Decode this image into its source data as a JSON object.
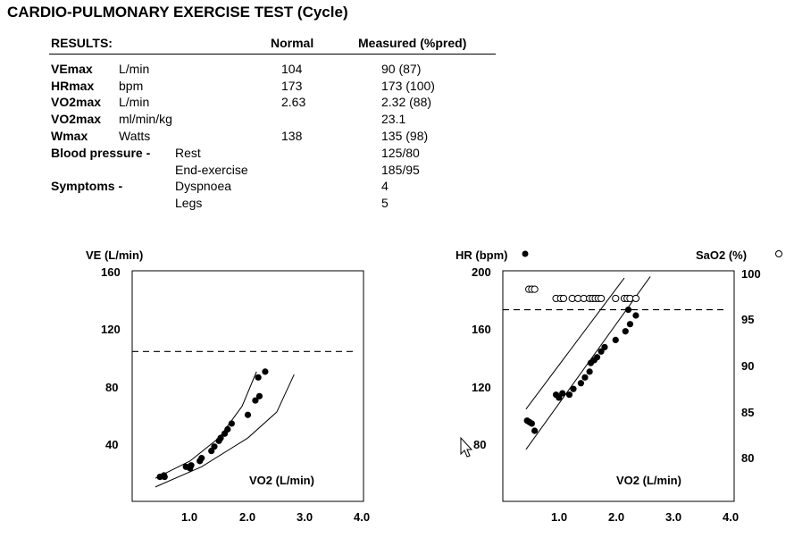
{
  "title": "CARDIO-PULMONARY EXERCISE TEST (Cycle)",
  "table": {
    "headers": [
      "RESULTS:",
      "Normal",
      "Measured (%pred)"
    ],
    "rows": [
      {
        "name": "VEmax",
        "unit": "L/min",
        "normal": "104",
        "measured": "90 (87)"
      },
      {
        "name": "HRmax",
        "unit": "bpm",
        "normal": "173",
        "measured": "173 (100)"
      },
      {
        "name": "VO2max",
        "unit": "L/min",
        "normal": "2.63",
        "measured": "2.32 (88)"
      },
      {
        "name": "VO2max",
        "unit": "ml/min/kg",
        "normal": "",
        "measured": "23.1"
      },
      {
        "name": "Wmax",
        "unit": "Watts",
        "normal": "138",
        "measured": "135 (98)"
      },
      {
        "name": "Blood pressure -",
        "unit": "Rest",
        "normal": "",
        "measured": "125/80"
      },
      {
        "name": "",
        "unit": "End-exercise",
        "normal": "",
        "measured": "185/95"
      },
      {
        "name": "Symptoms -",
        "unit": "Dyspnoea",
        "normal": "",
        "measured": "4"
      },
      {
        "name": "",
        "unit": "Legs",
        "normal": "",
        "measured": "5"
      }
    ]
  },
  "chart_data": [
    {
      "type": "scatter",
      "ylabel": "VE (L/min)",
      "xlabel": "VO2 (L/min)",
      "xlim": [
        0,
        4
      ],
      "ylim": [
        0,
        160
      ],
      "xticks": [
        "1.0",
        "2.0",
        "3.0",
        "4.0"
      ],
      "yticks": [
        "40",
        "80",
        "120",
        "160"
      ],
      "reference_line_y": 104,
      "points": [
        [
          0.48,
          17
        ],
        [
          0.55,
          18
        ],
        [
          0.56,
          17
        ],
        [
          0.93,
          24
        ],
        [
          1.0,
          23
        ],
        [
          1.02,
          25
        ],
        [
          1.17,
          28
        ],
        [
          1.2,
          30
        ],
        [
          1.37,
          35
        ],
        [
          1.42,
          38
        ],
        [
          1.5,
          42
        ],
        [
          1.53,
          44
        ],
        [
          1.6,
          47
        ],
        [
          1.65,
          50
        ],
        [
          1.72,
          54
        ],
        [
          2.0,
          60
        ],
        [
          2.13,
          70
        ],
        [
          2.2,
          73
        ],
        [
          2.18,
          86
        ],
        [
          2.3,
          90
        ]
      ],
      "envelope_upper": [
        [
          0.4,
          16
        ],
        [
          1.0,
          28
        ],
        [
          1.5,
          44
        ],
        [
          1.9,
          66
        ],
        [
          2.15,
          90
        ]
      ],
      "envelope_lower": [
        [
          0.4,
          10
        ],
        [
          1.2,
          24
        ],
        [
          2.0,
          44
        ],
        [
          2.5,
          62
        ],
        [
          2.8,
          88
        ]
      ]
    },
    {
      "type": "scatter",
      "ylabel": "HR (bpm)",
      "ylabel_right": "SaO2 (%)",
      "xlabel": "VO2 (L/min)",
      "xlim": [
        0,
        4
      ],
      "ylim": [
        40,
        200
      ],
      "ylim_right": [
        75,
        100
      ],
      "xticks": [
        "1.0",
        "2.0",
        "3.0",
        "4.0"
      ],
      "yticks": [
        "80",
        "120",
        "160",
        "200"
      ],
      "yticks_right": [
        "80",
        "85",
        "90",
        "95",
        "100"
      ],
      "reference_line_y": 173,
      "series": [
        {
          "name": "HR (bpm)",
          "marker": "filled",
          "points": [
            [
              0.42,
              96
            ],
            [
              0.46,
              95
            ],
            [
              0.5,
              94
            ],
            [
              0.55,
              89
            ],
            [
              0.92,
              114
            ],
            [
              0.97,
              112
            ],
            [
              1.03,
              115
            ],
            [
              1.15,
              114
            ],
            [
              1.22,
              118
            ],
            [
              1.35,
              122
            ],
            [
              1.42,
              126
            ],
            [
              1.5,
              130
            ],
            [
              1.52,
              136
            ],
            [
              1.58,
              138
            ],
            [
              1.63,
              140
            ],
            [
              1.7,
              144
            ],
            [
              1.76,
              147
            ],
            [
              1.95,
              152
            ],
            [
              2.12,
              158
            ],
            [
              2.2,
              163
            ],
            [
              2.3,
              169
            ],
            [
              2.17,
              173
            ]
          ]
        },
        {
          "name": "SaO2 (%)",
          "marker": "open",
          "points": [
            [
              0.45,
              98
            ],
            [
              0.5,
              98
            ],
            [
              0.55,
              98
            ],
            [
              0.92,
              97
            ],
            [
              1.0,
              97
            ],
            [
              1.05,
              97
            ],
            [
              1.2,
              97
            ],
            [
              1.3,
              97
            ],
            [
              1.4,
              97
            ],
            [
              1.5,
              97
            ],
            [
              1.55,
              97
            ],
            [
              1.6,
              97
            ],
            [
              1.65,
              97
            ],
            [
              1.7,
              97
            ],
            [
              1.95,
              97
            ],
            [
              2.1,
              97
            ],
            [
              2.15,
              97
            ],
            [
              2.2,
              97
            ],
            [
              2.3,
              97
            ]
          ]
        }
      ],
      "envelope_upper": [
        [
          0.4,
          104
        ],
        [
          2.1,
          195
        ]
      ],
      "envelope_lower": [
        [
          0.4,
          76
        ],
        [
          2.55,
          196
        ]
      ]
    }
  ]
}
